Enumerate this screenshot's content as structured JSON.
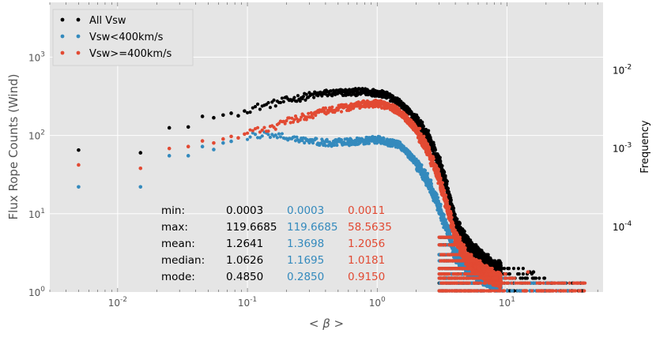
{
  "chart_data": {
    "type": "scatter",
    "title": "",
    "xlabel": "< β >",
    "ylabel": "Flux Rope Counts (Wind)",
    "ylabel_right": "Frequency",
    "xscale": "log",
    "yscale": "log",
    "xlim": [
      0.003,
      55
    ],
    "ylim": [
      1,
      5000
    ],
    "ylim_right": [
      1.45e-05,
      0.0728
    ],
    "grid": true,
    "legend_position": "top-left",
    "x_ticks": [
      {
        "value": 0.01,
        "base": "10",
        "exp": "-2"
      },
      {
        "value": 0.1,
        "base": "10",
        "exp": "-1"
      },
      {
        "value": 1,
        "base": "10",
        "exp": "0"
      },
      {
        "value": 10,
        "base": "10",
        "exp": "1"
      }
    ],
    "y_ticks": [
      {
        "value": 1,
        "base": "10",
        "exp": "0"
      },
      {
        "value": 10,
        "base": "10",
        "exp": "1"
      },
      {
        "value": 100,
        "base": "10",
        "exp": "2"
      },
      {
        "value": 1000,
        "base": "10",
        "exp": "3"
      }
    ],
    "y_right_ticks": [
      {
        "value": 0.0001,
        "base": "10",
        "exp": "-4"
      },
      {
        "value": 0.001,
        "base": "10",
        "exp": "-3"
      },
      {
        "value": 0.01,
        "base": "10",
        "exp": "-2"
      }
    ],
    "series": [
      {
        "name": "All Vsw",
        "color": "#000000",
        "anchors": [
          [
            0.005,
            65
          ],
          [
            0.015,
            60
          ],
          [
            0.025,
            125
          ],
          [
            0.035,
            128
          ],
          [
            0.045,
            175
          ],
          [
            0.06,
            180
          ],
          [
            0.08,
            200
          ],
          [
            0.1,
            215
          ],
          [
            0.15,
            250
          ],
          [
            0.2,
            280
          ],
          [
            0.3,
            320
          ],
          [
            0.4,
            345
          ],
          [
            0.6,
            355
          ],
          [
            0.8,
            360
          ],
          [
            1.0,
            350
          ],
          [
            1.2,
            320
          ],
          [
            1.5,
            260
          ],
          [
            2.0,
            160
          ],
          [
            2.5,
            90
          ],
          [
            3.0,
            45
          ],
          [
            3.5,
            20
          ],
          [
            4.0,
            8
          ],
          [
            5.0,
            4
          ],
          [
            6.0,
            3
          ],
          [
            8.0,
            2
          ],
          [
            12.0,
            1.7
          ],
          [
            16.0,
            1.3
          ],
          [
            25.0,
            1
          ],
          [
            40.0,
            1
          ]
        ],
        "sparse": [
          [
            0.005,
            65
          ],
          [
            0.015,
            60
          ],
          [
            0.025,
            125
          ],
          [
            0.035,
            128
          ],
          [
            0.045,
            175
          ],
          [
            0.055,
            168
          ],
          [
            0.065,
            182
          ],
          [
            0.075,
            192
          ],
          [
            0.085,
            178
          ],
          [
            0.095,
            205
          ],
          [
            15.0,
            1.8
          ],
          [
            16.0,
            1.8
          ],
          [
            18.0,
            1.3
          ],
          [
            22.0,
            1.3
          ]
        ],
        "stats": {
          "min": "0.0003",
          "max": "119.6685",
          "mean": "1.2641",
          "median": "1.0626",
          "mode": "0.4850"
        }
      },
      {
        "name": "Vsw<400km/s",
        "color": "#348ABD",
        "anchors": [
          [
            0.005,
            22
          ],
          [
            0.015,
            22
          ],
          [
            0.025,
            55
          ],
          [
            0.035,
            55
          ],
          [
            0.045,
            72
          ],
          [
            0.06,
            78
          ],
          [
            0.08,
            88
          ],
          [
            0.1,
            95
          ],
          [
            0.13,
            102
          ],
          [
            0.16,
            100
          ],
          [
            0.2,
            95
          ],
          [
            0.3,
            85
          ],
          [
            0.4,
            80
          ],
          [
            0.6,
            82
          ],
          [
            0.8,
            85
          ],
          [
            1.0,
            88
          ],
          [
            1.5,
            75
          ],
          [
            2.0,
            45
          ],
          [
            2.5,
            25
          ],
          [
            3.0,
            12
          ],
          [
            3.5,
            6
          ],
          [
            4.0,
            3
          ],
          [
            5.0,
            2
          ],
          [
            8.0,
            1.3
          ],
          [
            15.0,
            1
          ],
          [
            30.0,
            1
          ]
        ],
        "sparse": [
          [
            0.005,
            22
          ],
          [
            0.015,
            22
          ],
          [
            0.025,
            55
          ],
          [
            0.035,
            55
          ],
          [
            0.045,
            72
          ],
          [
            0.055,
            66
          ],
          [
            0.065,
            80
          ],
          [
            0.075,
            84
          ]
        ],
        "stats": {
          "min": "0.0003",
          "max": "119.6685",
          "mean": "1.3698",
          "median": "1.1695",
          "mode": "0.2850"
        }
      },
      {
        "name": "Vsw>=400km/s",
        "color": "#E24A33",
        "anchors": [
          [
            0.005,
            42
          ],
          [
            0.015,
            38
          ],
          [
            0.025,
            68
          ],
          [
            0.035,
            72
          ],
          [
            0.045,
            85
          ],
          [
            0.06,
            88
          ],
          [
            0.08,
            100
          ],
          [
            0.1,
            108
          ],
          [
            0.15,
            125
          ],
          [
            0.2,
            150
          ],
          [
            0.3,
            180
          ],
          [
            0.4,
            205
          ],
          [
            0.6,
            230
          ],
          [
            0.8,
            250
          ],
          [
            1.0,
            255
          ],
          [
            1.2,
            240
          ],
          [
            1.5,
            200
          ],
          [
            2.0,
            120
          ],
          [
            2.5,
            60
          ],
          [
            3.0,
            28
          ],
          [
            3.5,
            12
          ],
          [
            4.0,
            5
          ],
          [
            5.0,
            2.5
          ],
          [
            6.0,
            2
          ],
          [
            8.0,
            1.5
          ],
          [
            15.0,
            1
          ],
          [
            40.0,
            1
          ]
        ],
        "sparse": [
          [
            0.005,
            42
          ],
          [
            0.015,
            38
          ],
          [
            0.025,
            68
          ],
          [
            0.035,
            72
          ],
          [
            0.045,
            85
          ],
          [
            0.055,
            80
          ],
          [
            0.065,
            90
          ],
          [
            0.075,
            97
          ],
          [
            0.085,
            93
          ],
          [
            0.095,
            104
          ],
          [
            14.5,
            1.8
          ]
        ],
        "stats": {
          "min": "0.0011",
          "max": "58.5635",
          "mean": "1.2056",
          "median": "1.0181",
          "mode": "0.9150"
        }
      }
    ],
    "stat_labels": {
      "min": "min:",
      "max": "max:",
      "mean": "mean:",
      "median": "median:",
      "mode": "mode:"
    }
  }
}
